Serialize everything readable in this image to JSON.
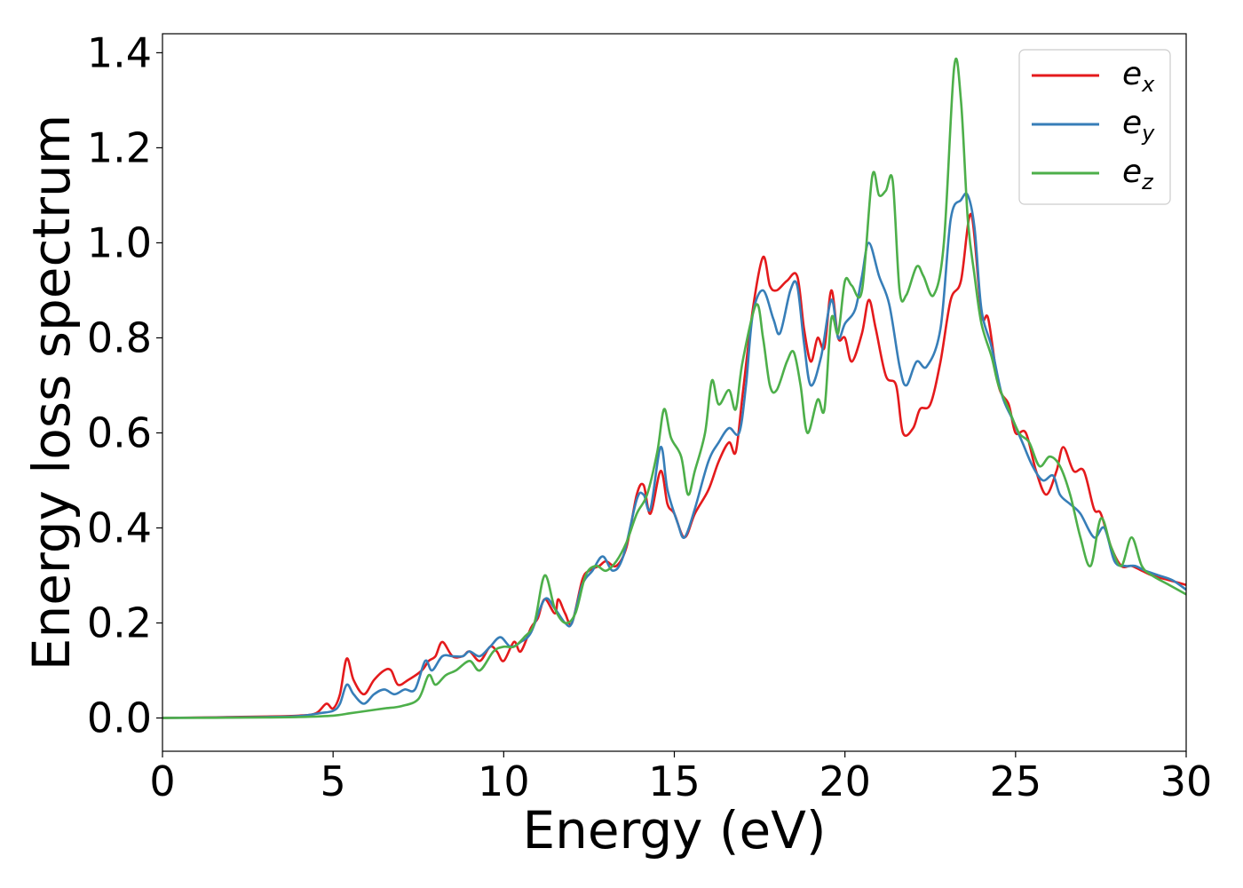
{
  "chart_data": {
    "type": "line",
    "xlabel": "Energy (eV)",
    "ylabel": "Energy loss spectrum",
    "xlim": [
      0,
      30
    ],
    "ylim": [
      -0.07,
      1.44
    ],
    "x_ticks": [
      "0",
      "5",
      "10",
      "15",
      "20",
      "25",
      "30"
    ],
    "y_ticks": [
      "0.0",
      "0.2",
      "0.4",
      "0.6",
      "0.8",
      "1.0",
      "1.2",
      "1.4"
    ],
    "grid": false,
    "legend_position": "top-right",
    "series": [
      {
        "name": "e_x",
        "base": "e",
        "sub": "x",
        "color": "#e41a1c",
        "points": [
          [
            0,
            0
          ],
          [
            3,
            0.003
          ],
          [
            4,
            0.005
          ],
          [
            4.5,
            0.01
          ],
          [
            4.8,
            0.03
          ],
          [
            5.0,
            0.02
          ],
          [
            5.2,
            0.05
          ],
          [
            5.4,
            0.125
          ],
          [
            5.6,
            0.08
          ],
          [
            5.9,
            0.05
          ],
          [
            6.2,
            0.08
          ],
          [
            6.5,
            0.1
          ],
          [
            6.7,
            0.1
          ],
          [
            6.9,
            0.07
          ],
          [
            7.2,
            0.08
          ],
          [
            7.6,
            0.1
          ],
          [
            7.8,
            0.12
          ],
          [
            8.0,
            0.13
          ],
          [
            8.2,
            0.16
          ],
          [
            8.5,
            0.13
          ],
          [
            8.8,
            0.13
          ],
          [
            9.0,
            0.14
          ],
          [
            9.3,
            0.12
          ],
          [
            9.6,
            0.15
          ],
          [
            9.8,
            0.14
          ],
          [
            10.0,
            0.12
          ],
          [
            10.3,
            0.16
          ],
          [
            10.5,
            0.14
          ],
          [
            10.8,
            0.19
          ],
          [
            11.0,
            0.21
          ],
          [
            11.2,
            0.25
          ],
          [
            11.5,
            0.22
          ],
          [
            11.6,
            0.25
          ],
          [
            11.8,
            0.22
          ],
          [
            12.0,
            0.2
          ],
          [
            12.3,
            0.29
          ],
          [
            12.5,
            0.31
          ],
          [
            12.8,
            0.32
          ],
          [
            13.0,
            0.33
          ],
          [
            13.3,
            0.32
          ],
          [
            13.6,
            0.36
          ],
          [
            13.9,
            0.47
          ],
          [
            14.1,
            0.49
          ],
          [
            14.3,
            0.43
          ],
          [
            14.6,
            0.52
          ],
          [
            14.8,
            0.45
          ],
          [
            15.0,
            0.43
          ],
          [
            15.3,
            0.38
          ],
          [
            15.6,
            0.43
          ],
          [
            16.0,
            0.48
          ],
          [
            16.3,
            0.54
          ],
          [
            16.6,
            0.58
          ],
          [
            16.8,
            0.56
          ],
          [
            17.0,
            0.68
          ],
          [
            17.3,
            0.86
          ],
          [
            17.6,
            0.97
          ],
          [
            17.8,
            0.91
          ],
          [
            18.0,
            0.9
          ],
          [
            18.3,
            0.92
          ],
          [
            18.6,
            0.93
          ],
          [
            18.8,
            0.82
          ],
          [
            19.0,
            0.75
          ],
          [
            19.2,
            0.8
          ],
          [
            19.4,
            0.78
          ],
          [
            19.6,
            0.9
          ],
          [
            19.8,
            0.8
          ],
          [
            20.0,
            0.8
          ],
          [
            20.2,
            0.75
          ],
          [
            20.5,
            0.81
          ],
          [
            20.7,
            0.88
          ],
          [
            20.9,
            0.82
          ],
          [
            21.2,
            0.72
          ],
          [
            21.5,
            0.7
          ],
          [
            21.7,
            0.6
          ],
          [
            22.0,
            0.61
          ],
          [
            22.2,
            0.65
          ],
          [
            22.5,
            0.66
          ],
          [
            22.8,
            0.75
          ],
          [
            23.1,
            0.88
          ],
          [
            23.4,
            0.92
          ],
          [
            23.7,
            1.06
          ],
          [
            24.0,
            0.85
          ],
          [
            24.2,
            0.84
          ],
          [
            24.5,
            0.7
          ],
          [
            24.8,
            0.66
          ],
          [
            25.0,
            0.6
          ],
          [
            25.3,
            0.6
          ],
          [
            25.6,
            0.52
          ],
          [
            25.9,
            0.47
          ],
          [
            26.2,
            0.52
          ],
          [
            26.4,
            0.57
          ],
          [
            26.7,
            0.52
          ],
          [
            27.0,
            0.52
          ],
          [
            27.3,
            0.44
          ],
          [
            27.5,
            0.43
          ],
          [
            27.8,
            0.36
          ],
          [
            28.1,
            0.32
          ],
          [
            28.4,
            0.32
          ],
          [
            28.7,
            0.31
          ],
          [
            29.0,
            0.3
          ],
          [
            29.5,
            0.29
          ],
          [
            30.0,
            0.28
          ]
        ]
      },
      {
        "name": "e_y",
        "base": "e",
        "sub": "y",
        "color": "#377eb8",
        "points": [
          [
            0,
            0
          ],
          [
            3,
            0.002
          ],
          [
            4,
            0.004
          ],
          [
            4.6,
            0.01
          ],
          [
            5.0,
            0.015
          ],
          [
            5.2,
            0.03
          ],
          [
            5.4,
            0.07
          ],
          [
            5.6,
            0.05
          ],
          [
            5.9,
            0.03
          ],
          [
            6.2,
            0.05
          ],
          [
            6.5,
            0.06
          ],
          [
            6.8,
            0.05
          ],
          [
            7.1,
            0.06
          ],
          [
            7.4,
            0.06
          ],
          [
            7.7,
            0.12
          ],
          [
            7.9,
            0.1
          ],
          [
            8.2,
            0.13
          ],
          [
            8.5,
            0.13
          ],
          [
            8.8,
            0.13
          ],
          [
            9.0,
            0.14
          ],
          [
            9.3,
            0.13
          ],
          [
            9.6,
            0.15
          ],
          [
            9.9,
            0.17
          ],
          [
            10.2,
            0.15
          ],
          [
            10.5,
            0.16
          ],
          [
            10.8,
            0.18
          ],
          [
            11.2,
            0.25
          ],
          [
            11.5,
            0.23
          ],
          [
            11.8,
            0.2
          ],
          [
            12.0,
            0.2
          ],
          [
            12.3,
            0.28
          ],
          [
            12.6,
            0.31
          ],
          [
            12.9,
            0.34
          ],
          [
            13.2,
            0.31
          ],
          [
            13.5,
            0.34
          ],
          [
            13.9,
            0.46
          ],
          [
            14.1,
            0.47
          ],
          [
            14.3,
            0.44
          ],
          [
            14.6,
            0.57
          ],
          [
            14.8,
            0.48
          ],
          [
            15.1,
            0.41
          ],
          [
            15.3,
            0.38
          ],
          [
            15.6,
            0.44
          ],
          [
            16.0,
            0.54
          ],
          [
            16.3,
            0.58
          ],
          [
            16.6,
            0.61
          ],
          [
            16.9,
            0.6
          ],
          [
            17.1,
            0.7
          ],
          [
            17.3,
            0.85
          ],
          [
            17.6,
            0.9
          ],
          [
            17.9,
            0.84
          ],
          [
            18.1,
            0.81
          ],
          [
            18.4,
            0.9
          ],
          [
            18.6,
            0.91
          ],
          [
            18.8,
            0.79
          ],
          [
            19.0,
            0.7
          ],
          [
            19.3,
            0.76
          ],
          [
            19.6,
            0.88
          ],
          [
            19.8,
            0.8
          ],
          [
            20.0,
            0.83
          ],
          [
            20.3,
            0.86
          ],
          [
            20.5,
            0.93
          ],
          [
            20.7,
            1.0
          ],
          [
            21.0,
            0.93
          ],
          [
            21.3,
            0.87
          ],
          [
            21.6,
            0.74
          ],
          [
            21.8,
            0.7
          ],
          [
            22.1,
            0.75
          ],
          [
            22.4,
            0.74
          ],
          [
            22.8,
            0.82
          ],
          [
            23.1,
            1.05
          ],
          [
            23.4,
            1.09
          ],
          [
            23.6,
            1.1
          ],
          [
            23.8,
            1.03
          ],
          [
            24.0,
            0.86
          ],
          [
            24.3,
            0.78
          ],
          [
            24.6,
            0.68
          ],
          [
            24.9,
            0.63
          ],
          [
            25.2,
            0.58
          ],
          [
            25.5,
            0.53
          ],
          [
            25.8,
            0.5
          ],
          [
            26.1,
            0.51
          ],
          [
            26.3,
            0.47
          ],
          [
            26.6,
            0.45
          ],
          [
            26.9,
            0.43
          ],
          [
            27.3,
            0.38
          ],
          [
            27.6,
            0.4
          ],
          [
            27.9,
            0.33
          ],
          [
            28.2,
            0.32
          ],
          [
            28.5,
            0.32
          ],
          [
            28.8,
            0.31
          ],
          [
            29.2,
            0.3
          ],
          [
            29.6,
            0.29
          ],
          [
            30.0,
            0.27
          ]
        ]
      },
      {
        "name": "e_z",
        "base": "e",
        "sub": "z",
        "color": "#4daf4a",
        "points": [
          [
            0,
            0
          ],
          [
            3,
            0.001
          ],
          [
            4,
            0.002
          ],
          [
            5.0,
            0.005
          ],
          [
            5.5,
            0.01
          ],
          [
            6.0,
            0.015
          ],
          [
            6.5,
            0.02
          ],
          [
            7.0,
            0.025
          ],
          [
            7.5,
            0.04
          ],
          [
            7.8,
            0.09
          ],
          [
            8.0,
            0.07
          ],
          [
            8.3,
            0.09
          ],
          [
            8.6,
            0.1
          ],
          [
            9.0,
            0.12
          ],
          [
            9.3,
            0.1
          ],
          [
            9.7,
            0.14
          ],
          [
            10.0,
            0.15
          ],
          [
            10.3,
            0.15
          ],
          [
            10.6,
            0.17
          ],
          [
            10.9,
            0.2
          ],
          [
            11.2,
            0.3
          ],
          [
            11.5,
            0.23
          ],
          [
            11.8,
            0.2
          ],
          [
            12.1,
            0.22
          ],
          [
            12.4,
            0.3
          ],
          [
            12.7,
            0.32
          ],
          [
            13.0,
            0.31
          ],
          [
            13.3,
            0.33
          ],
          [
            13.6,
            0.37
          ],
          [
            13.9,
            0.43
          ],
          [
            14.2,
            0.47
          ],
          [
            14.5,
            0.56
          ],
          [
            14.7,
            0.65
          ],
          [
            14.9,
            0.59
          ],
          [
            15.2,
            0.55
          ],
          [
            15.4,
            0.47
          ],
          [
            15.6,
            0.52
          ],
          [
            15.9,
            0.6
          ],
          [
            16.1,
            0.71
          ],
          [
            16.3,
            0.66
          ],
          [
            16.6,
            0.69
          ],
          [
            16.8,
            0.65
          ],
          [
            17.0,
            0.75
          ],
          [
            17.4,
            0.87
          ],
          [
            17.6,
            0.8
          ],
          [
            17.8,
            0.7
          ],
          [
            18.0,
            0.69
          ],
          [
            18.3,
            0.75
          ],
          [
            18.5,
            0.77
          ],
          [
            18.7,
            0.7
          ],
          [
            18.9,
            0.6
          ],
          [
            19.2,
            0.67
          ],
          [
            19.4,
            0.65
          ],
          [
            19.6,
            0.84
          ],
          [
            19.8,
            0.81
          ],
          [
            20.0,
            0.92
          ],
          [
            20.2,
            0.91
          ],
          [
            20.5,
            0.9
          ],
          [
            20.8,
            1.14
          ],
          [
            21.0,
            1.1
          ],
          [
            21.2,
            1.11
          ],
          [
            21.4,
            1.13
          ],
          [
            21.6,
            0.9
          ],
          [
            21.8,
            0.89
          ],
          [
            22.1,
            0.95
          ],
          [
            22.3,
            0.93
          ],
          [
            22.6,
            0.89
          ],
          [
            22.9,
            1.0
          ],
          [
            23.2,
            1.37
          ],
          [
            23.4,
            1.3
          ],
          [
            23.6,
            1.05
          ],
          [
            23.8,
            0.93
          ],
          [
            24.0,
            0.83
          ],
          [
            24.3,
            0.76
          ],
          [
            24.5,
            0.7
          ],
          [
            24.8,
            0.65
          ],
          [
            25.1,
            0.6
          ],
          [
            25.4,
            0.58
          ],
          [
            25.7,
            0.53
          ],
          [
            26.0,
            0.55
          ],
          [
            26.3,
            0.53
          ],
          [
            26.6,
            0.47
          ],
          [
            26.9,
            0.38
          ],
          [
            27.2,
            0.32
          ],
          [
            27.5,
            0.42
          ],
          [
            27.8,
            0.36
          ],
          [
            28.1,
            0.32
          ],
          [
            28.4,
            0.38
          ],
          [
            28.7,
            0.32
          ],
          [
            29.0,
            0.3
          ],
          [
            29.5,
            0.28
          ],
          [
            30.0,
            0.26
          ]
        ]
      }
    ]
  }
}
